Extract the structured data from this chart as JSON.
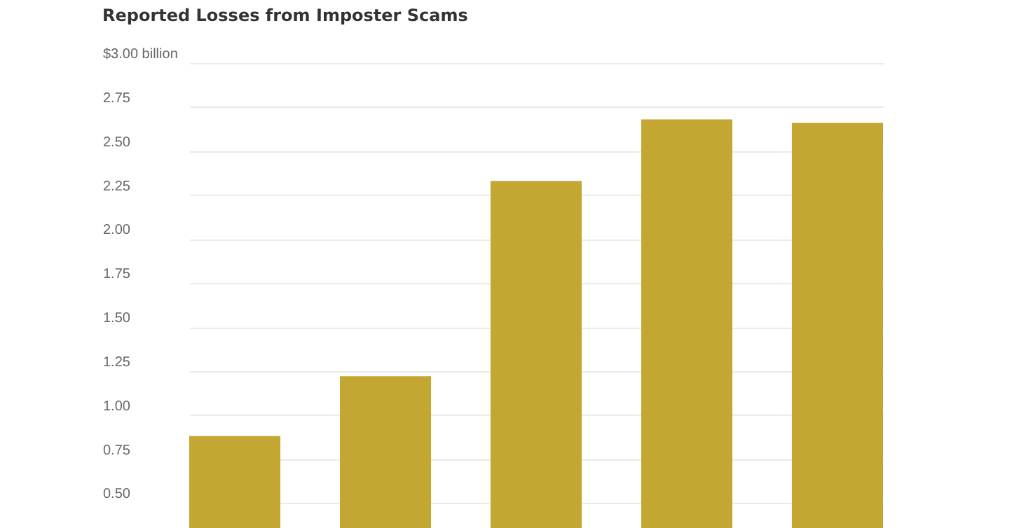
{
  "chart_data": {
    "type": "bar",
    "title": "Reported Losses from Imposter Scams",
    "categories": [
      null,
      null,
      null,
      null,
      null
    ],
    "values": [
      0.88,
      1.22,
      2.33,
      2.68,
      2.66
    ],
    "color": "#c4a632",
    "ylim": [
      0,
      3.0
    ],
    "yticks": [
      {
        "value": 0.5,
        "label": "0.50"
      },
      {
        "value": 0.75,
        "label": "0.75"
      },
      {
        "value": 1.0,
        "label": "1.00"
      },
      {
        "value": 1.25,
        "label": "1.25"
      },
      {
        "value": 1.5,
        "label": "1.50"
      },
      {
        "value": 1.75,
        "label": "1.75"
      },
      {
        "value": 2.0,
        "label": "2.00"
      },
      {
        "value": 2.25,
        "label": "2.25"
      },
      {
        "value": 2.5,
        "label": "2.50"
      },
      {
        "value": 2.75,
        "label": "2.75"
      },
      {
        "value": 3.0,
        "label": "$3.00 billion"
      }
    ],
    "grid": "y",
    "tick_labels": "y"
  }
}
